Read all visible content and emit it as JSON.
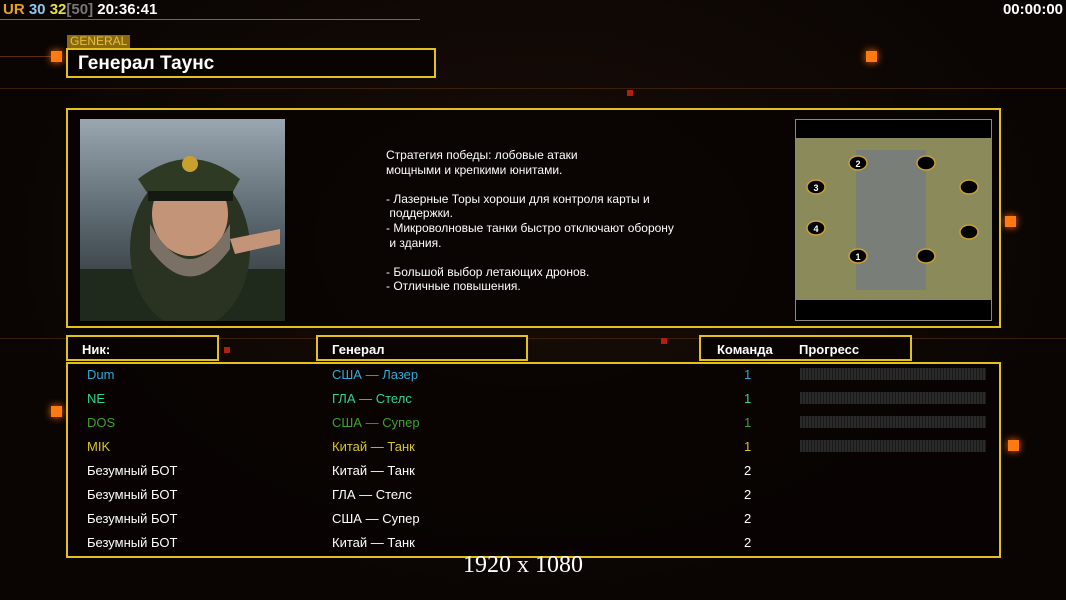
{
  "hud": {
    "ur": "UR",
    "a": "30",
    "b": "32",
    "c": "[50]",
    "time": "20:36:41",
    "timer": "00:00:00"
  },
  "general": {
    "tag": "GENERAL",
    "name": "Генерал Таунс",
    "description": "Стратегия победы: лобовые атаки\nмощными и крепкими юнитами.\n\n- Лазерные Торы хороши для контроля карты и\n поддержки.\n- Микроволновые танки быстро отключают оборону\n и здания.\n\n- Большой выбор летающих дронов.\n- Отличные повышения."
  },
  "map": {
    "slots": [
      "1",
      "2",
      "3",
      "4"
    ]
  },
  "headers": {
    "nick": "Ник:",
    "general": "Генерал",
    "team": "Команда",
    "progress": "Прогресс"
  },
  "players": [
    {
      "nick": "Dum",
      "general": "США — Лазер",
      "team": "1",
      "color": "#2fa9d6",
      "progress": 0
    },
    {
      "nick": "NE",
      "general": "ГЛА — Стелс",
      "team": "1",
      "color": "#2fd690",
      "progress": 0
    },
    {
      "nick": "DOS",
      "general": "США — Супер",
      "team": "1",
      "color": "#3fa02a",
      "progress": 0
    },
    {
      "nick": "MIK",
      "general": "Китай — Танк",
      "team": "1",
      "color": "#d6c620",
      "progress": 0
    },
    {
      "nick": "Безумный БОТ",
      "general": "Китай — Танк",
      "team": "2",
      "color": "#ffffff"
    },
    {
      "nick": "Безумный БОТ",
      "general": "ГЛА — Стелс",
      "team": "2",
      "color": "#ffffff"
    },
    {
      "nick": "Безумный БОТ",
      "general": "США — Супер",
      "team": "2",
      "color": "#ffffff"
    },
    {
      "nick": "Безумный БОТ",
      "general": "Китай — Танк",
      "team": "2",
      "color": "#ffffff"
    }
  ],
  "resolution": "1920 x 1080"
}
